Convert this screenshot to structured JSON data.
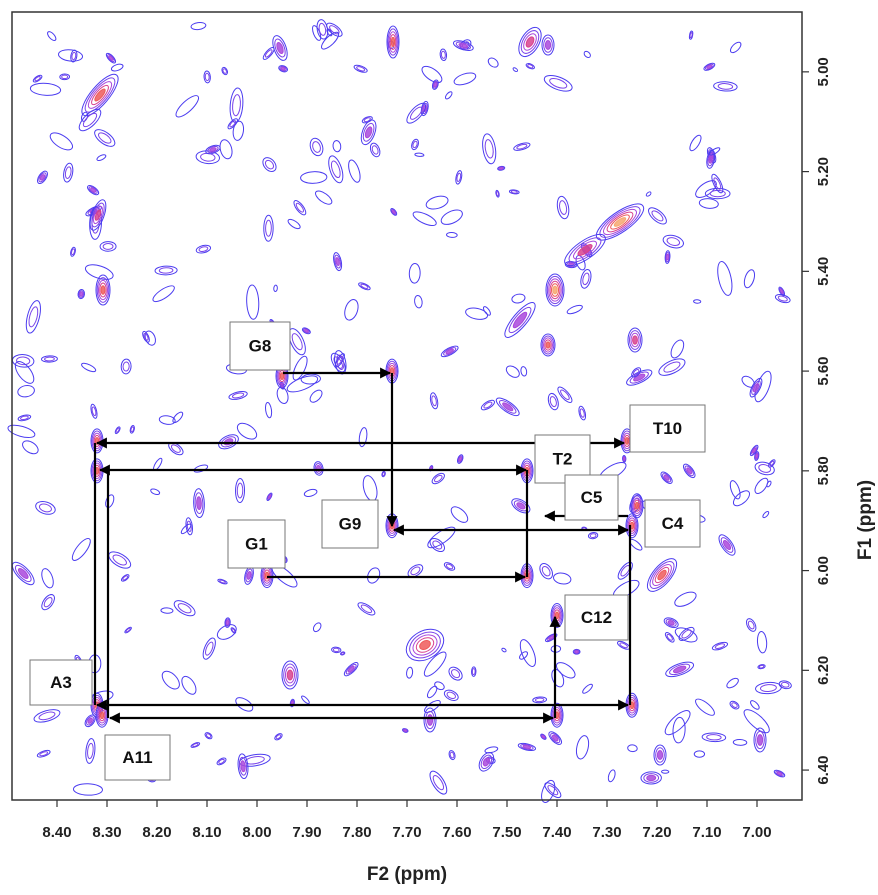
{
  "chart_data": {
    "type": "contour",
    "x_label": "F2 (ppm)",
    "y_label": "F1 (ppm)",
    "xlim": [
      8.49,
      6.91
    ],
    "ylim": [
      4.88,
      6.46
    ],
    "xticks": [
      {
        "value": 8.4,
        "label": "8.40"
      },
      {
        "value": 8.3,
        "label": "8.30"
      },
      {
        "value": 8.2,
        "label": "8.20"
      },
      {
        "value": 8.1,
        "label": "8.10"
      },
      {
        "value": 8.0,
        "label": "8.00"
      },
      {
        "value": 7.9,
        "label": "7.90"
      },
      {
        "value": 7.8,
        "label": "7.80"
      },
      {
        "value": 7.7,
        "label": "7.70"
      },
      {
        "value": 7.6,
        "label": "7.60"
      },
      {
        "value": 7.5,
        "label": "7.50"
      },
      {
        "value": 7.4,
        "label": "7.40"
      },
      {
        "value": 7.3,
        "label": "7.30"
      },
      {
        "value": 7.2,
        "label": "7.20"
      },
      {
        "value": 7.1,
        "label": "7.10"
      },
      {
        "value": 7.0,
        "label": "7.00"
      }
    ],
    "yticks": [
      {
        "value": 5.0,
        "label": "5.00"
      },
      {
        "value": 5.2,
        "label": "5.20"
      },
      {
        "value": 5.4,
        "label": "5.40"
      },
      {
        "value": 5.6,
        "label": "5.60"
      },
      {
        "value": 5.8,
        "label": "5.80"
      },
      {
        "value": 6.0,
        "label": "6.00"
      },
      {
        "value": 6.2,
        "label": "6.20"
      },
      {
        "value": 6.4,
        "label": "6.40"
      }
    ],
    "peaks": [
      {
        "label": "G8",
        "x": 7.95,
        "y": 5.61
      },
      {
        "x": 7.73,
        "y": 5.6
      },
      {
        "label": "G9",
        "x": 7.73,
        "y": 5.91
      },
      {
        "label": "C4",
        "x": 7.25,
        "y": 5.91
      },
      {
        "label": "T10",
        "x": 7.26,
        "y": 5.74
      },
      {
        "label": "T2",
        "x": 7.46,
        "y": 5.8
      },
      {
        "label": "C5",
        "x": 7.24,
        "y": 5.87
      },
      {
        "label": "G1",
        "x": 7.98,
        "y": 6.01
      },
      {
        "x": 7.46,
        "y": 6.01
      },
      {
        "label": "C12",
        "x": 7.4,
        "y": 6.09
      },
      {
        "label": "A3",
        "x": 8.32,
        "y": 6.27
      },
      {
        "label": "A11",
        "x": 8.31,
        "y": 6.29
      },
      {
        "x": 7.4,
        "y": 6.29
      },
      {
        "x": 7.25,
        "y": 6.27
      },
      {
        "x": 8.32,
        "y": 5.74
      },
      {
        "x": 8.32,
        "y": 5.8
      }
    ]
  }
}
